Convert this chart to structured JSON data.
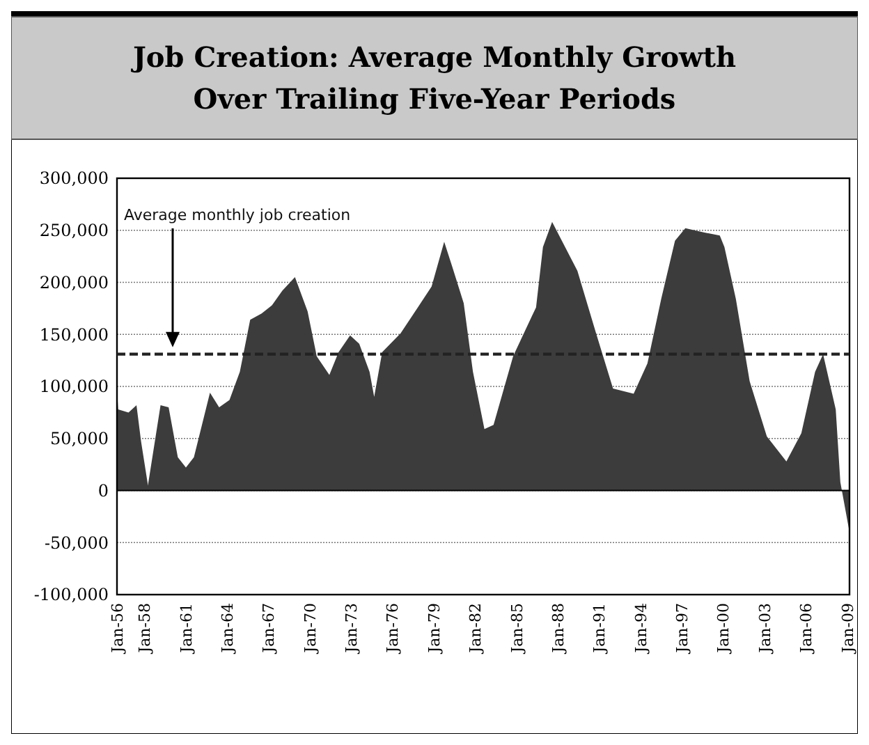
{
  "chart_data": {
    "type": "area",
    "title": "Job Creation: Average Monthly Growth\nOver Trailing Five-Year Periods",
    "x": [
      "1956-01",
      "1956-02",
      "1956-11",
      "1957-06",
      "1957-10",
      "1958-04",
      "1959-03",
      "1959-10",
      "1960-06",
      "1961-01",
      "1961-08",
      "1962-10",
      "1963-06",
      "1964-03",
      "1964-12",
      "1965-09",
      "1966-07",
      "1967-04",
      "1968-01",
      "1968-12",
      "1969-11",
      "1970-07",
      "1971-06",
      "1972-02",
      "1972-12",
      "1973-08",
      "1974-05",
      "1974-09",
      "1975-04",
      "1976-08",
      "1977-11",
      "1978-11",
      "1979-10",
      "1980-05",
      "1981-03",
      "1981-11",
      "1982-09",
      "1983-05",
      "1984-10",
      "1986-06",
      "1986-12",
      "1987-08",
      "1989-06",
      "1990-10",
      "1992-01",
      "1993-07",
      "1994-07",
      "1995-07",
      "1996-07",
      "1997-04",
      "1998-08",
      "1999-10",
      "2000-02",
      "2000-12",
      "2001-12",
      "2003-03",
      "2004-08",
      "2005-09",
      "2006-09",
      "2007-04",
      "2008-03",
      "2008-07",
      "2009-03"
    ],
    "series": [
      {
        "color": "#3c3c3c",
        "values": [
          98000,
          78000,
          75000,
          82000,
          47000,
          5000,
          82000,
          80000,
          32000,
          22000,
          32000,
          94000,
          80000,
          87000,
          114000,
          164000,
          170000,
          178000,
          192000,
          205000,
          172000,
          129000,
          111000,
          133000,
          149000,
          141000,
          114000,
          90000,
          133000,
          151000,
          176000,
          196000,
          239000,
          215000,
          180000,
          114000,
          59000,
          63000,
          129000,
          176000,
          234000,
          258000,
          211000,
          152000,
          98000,
          93000,
          122000,
          184000,
          240000,
          252000,
          248000,
          245000,
          234000,
          184000,
          105000,
          52000,
          28000,
          55000,
          114000,
          131000,
          78000,
          8000,
          -40000
        ]
      }
    ],
    "xlim": [
      "1956-01",
      "2009-03"
    ],
    "xticks": [
      {
        "value": "1956-01",
        "label": "Jan-56"
      },
      {
        "value": "1958-01",
        "label": "Jan-58"
      },
      {
        "value": "1961-01",
        "label": "Jan-61"
      },
      {
        "value": "1964-01",
        "label": "Jan-64"
      },
      {
        "value": "1967-01",
        "label": "Jan-67"
      },
      {
        "value": "1970-01",
        "label": "Jan-70"
      },
      {
        "value": "1973-01",
        "label": "Jan-73"
      },
      {
        "value": "1976-01",
        "label": "Jan-76"
      },
      {
        "value": "1979-01",
        "label": "Jan-79"
      },
      {
        "value": "1982-01",
        "label": "Jan-82"
      },
      {
        "value": "1985-01",
        "label": "Jan-85"
      },
      {
        "value": "1988-01",
        "label": "Jan-88"
      },
      {
        "value": "1991-01",
        "label": "Jan-91"
      },
      {
        "value": "1994-01",
        "label": "Jan-94"
      },
      {
        "value": "1997-01",
        "label": "Jan-97"
      },
      {
        "value": "2000-01",
        "label": "Jan-00"
      },
      {
        "value": "2003-01",
        "label": "Jan-03"
      },
      {
        "value": "2006-01",
        "label": "Jan-06"
      },
      {
        "value": "2009-01",
        "label": "Jan-09"
      }
    ],
    "ylim": [
      -100000,
      300000
    ],
    "yticks": [
      {
        "value": -100000,
        "label": "-100,000"
      },
      {
        "value": -50000,
        "label": "-50,000"
      },
      0,
      {
        "value": 50000,
        "label": "50,000"
      },
      {
        "value": 100000,
        "label": "100,000"
      },
      {
        "value": 150000,
        "label": "150,000"
      },
      {
        "value": 200000,
        "label": "200,000"
      },
      {
        "value": 250000,
        "label": "250,000"
      },
      {
        "value": 300000,
        "label": "300,000"
      }
    ],
    "grid": "y",
    "ref_lines": [
      {
        "axis": "y",
        "value": 131000,
        "label": "Average monthly job creation",
        "line_style": "dashed",
        "color": "#222222"
      }
    ]
  }
}
